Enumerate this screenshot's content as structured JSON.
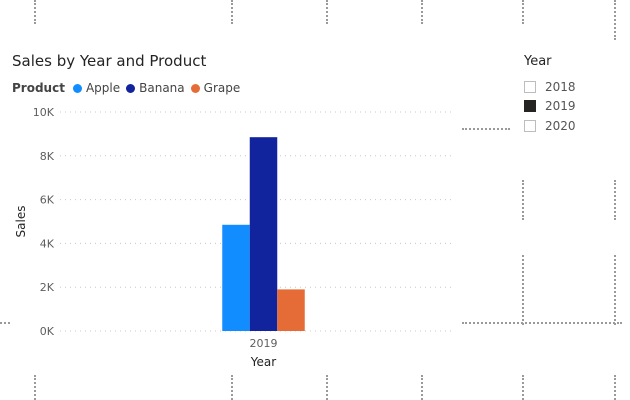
{
  "title": "Sales by Year and Product",
  "legend": {
    "title": "Product",
    "items": [
      {
        "label": "Apple",
        "color": "#118DFF"
      },
      {
        "label": "Banana",
        "color": "#12239E"
      },
      {
        "label": "Grape",
        "color": "#E66C37"
      }
    ]
  },
  "slicer": {
    "title": "Year",
    "options": [
      {
        "label": "2018",
        "checked": false
      },
      {
        "label": "2019",
        "checked": true
      },
      {
        "label": "2020",
        "checked": false
      }
    ]
  },
  "chart_data": {
    "type": "bar",
    "title": "Sales by Year and Product",
    "xlabel": "Year",
    "ylabel": "Sales",
    "categories": [
      "2019"
    ],
    "series": [
      {
        "name": "Apple",
        "color": "#118DFF",
        "values": [
          4850
        ]
      },
      {
        "name": "Banana",
        "color": "#12239E",
        "values": [
          8850
        ]
      },
      {
        "name": "Grape",
        "color": "#E66C37",
        "values": [
          1900
        ]
      }
    ],
    "ylim": [
      0,
      10000
    ],
    "yticks": [
      0,
      2000,
      4000,
      6000,
      8000,
      10000
    ],
    "ytick_labels": [
      "0K",
      "2K",
      "4K",
      "6K",
      "8K",
      "10K"
    ],
    "grid": true,
    "legend_position": "top-left"
  }
}
